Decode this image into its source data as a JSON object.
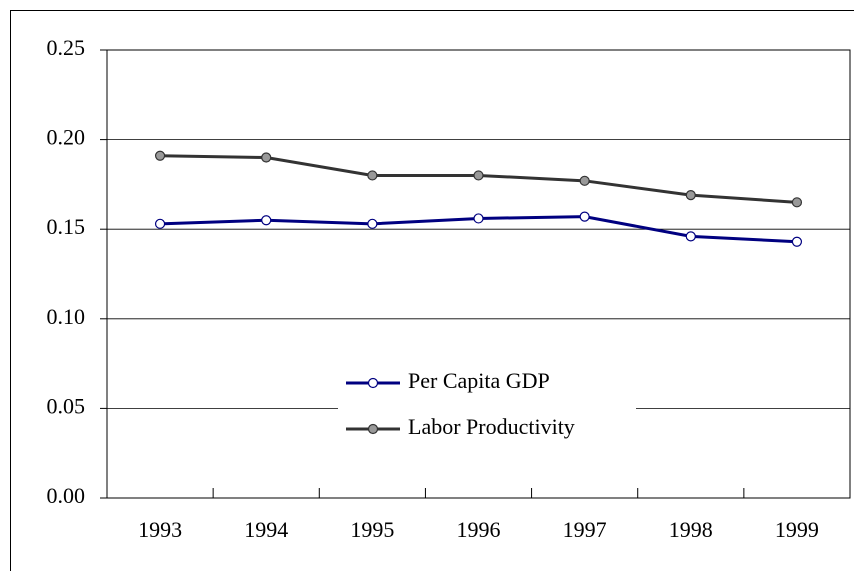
{
  "chart_data": {
    "type": "line",
    "categories": [
      "1993",
      "1994",
      "1995",
      "1996",
      "1997",
      "1998",
      "1999"
    ],
    "series": [
      {
        "name": "Per Capita GDP",
        "color": "#000080",
        "marker_fill": "#ffffff",
        "values": [
          0.153,
          0.155,
          0.153,
          0.156,
          0.157,
          0.146,
          0.143
        ]
      },
      {
        "name": "Labor Productivity",
        "color": "#333333",
        "marker_fill": "#999999",
        "values": [
          0.191,
          0.19,
          0.18,
          0.18,
          0.177,
          0.169,
          0.165
        ]
      }
    ],
    "ylim": [
      0,
      0.25
    ],
    "yticks": [
      {
        "value": 0,
        "label": "0.00"
      },
      0.05,
      {
        "value": 0.1,
        "label": "0.10"
      },
      0.15,
      {
        "value": 0.2,
        "label": "0.20"
      },
      0.25
    ],
    "grid": true,
    "legend": "center"
  }
}
